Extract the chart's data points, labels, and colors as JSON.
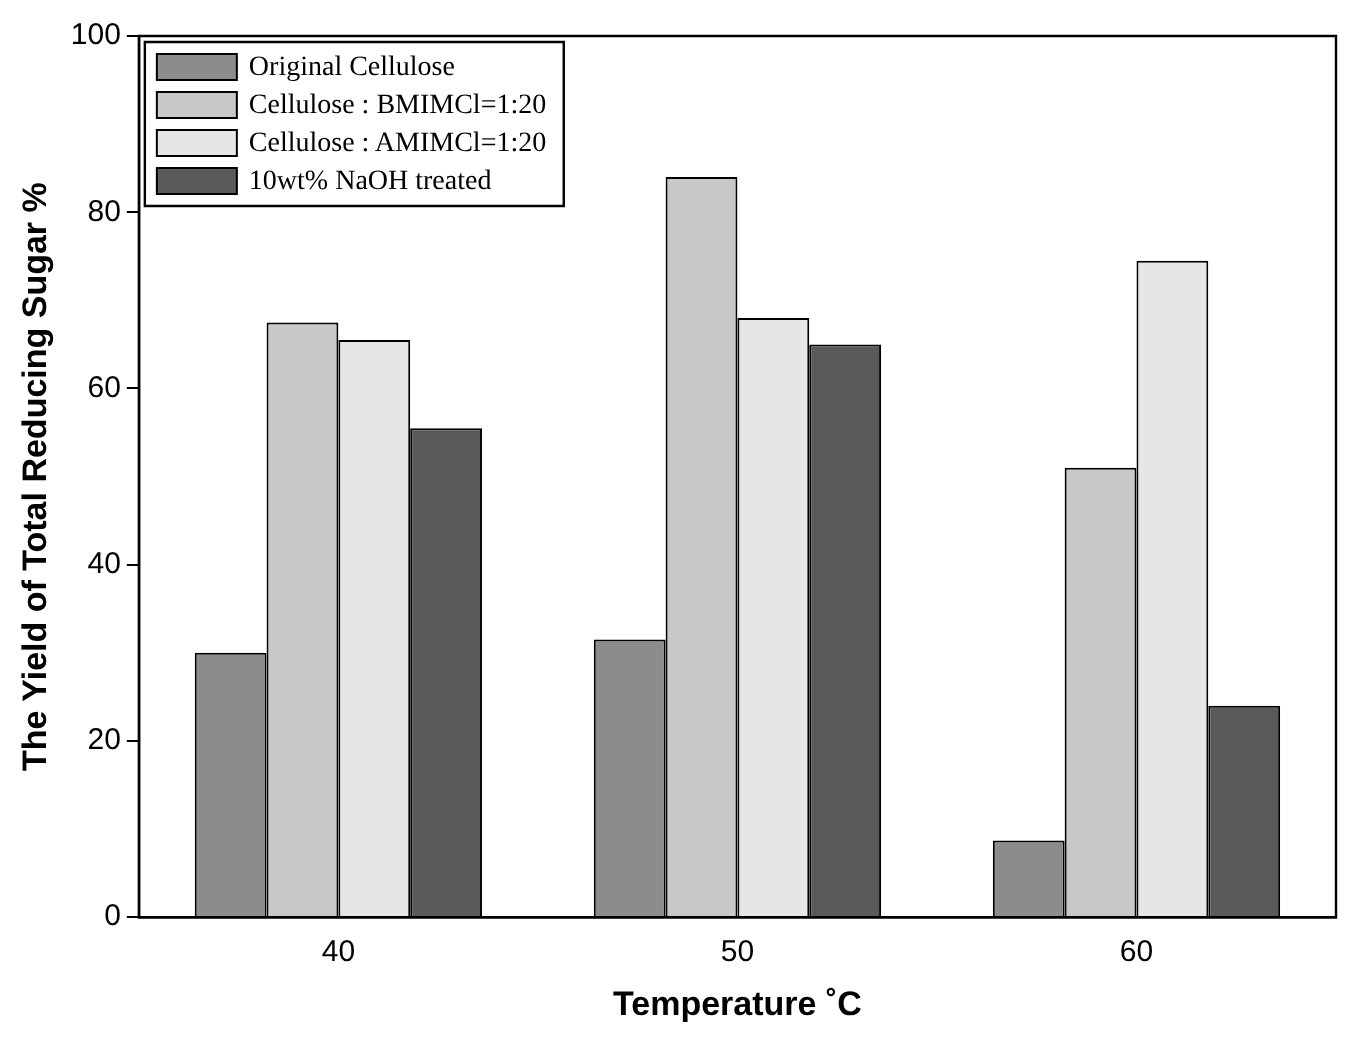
{
  "chart_data": {
    "type": "bar",
    "xlabel": "Temperature ˚C",
    "ylabel": "The Yield of Total Reducing Sugar %",
    "categories": [
      "40",
      "50",
      "60"
    ],
    "series": [
      {
        "name": "Original Cellulose",
        "color": "#8c8c8c",
        "values": [
          30,
          31.5,
          8.7
        ]
      },
      {
        "name": "Cellulose : BMIMCl=1:20",
        "color": "#c8c8c8",
        "values": [
          67.5,
          84,
          51
        ]
      },
      {
        "name": "Cellulose : AMIMCl=1:20",
        "color": "#e6e6e6",
        "values": [
          65.5,
          68,
          74.5
        ]
      },
      {
        "name": "10wt% NaOH treated",
        "color": "#5a5a5a",
        "values": [
          55.5,
          65,
          24
        ]
      }
    ],
    "ylim": [
      0,
      100
    ],
    "yticks": [
      0,
      20,
      40,
      60,
      80,
      100
    ],
    "grid": false,
    "legend": "top left"
  }
}
